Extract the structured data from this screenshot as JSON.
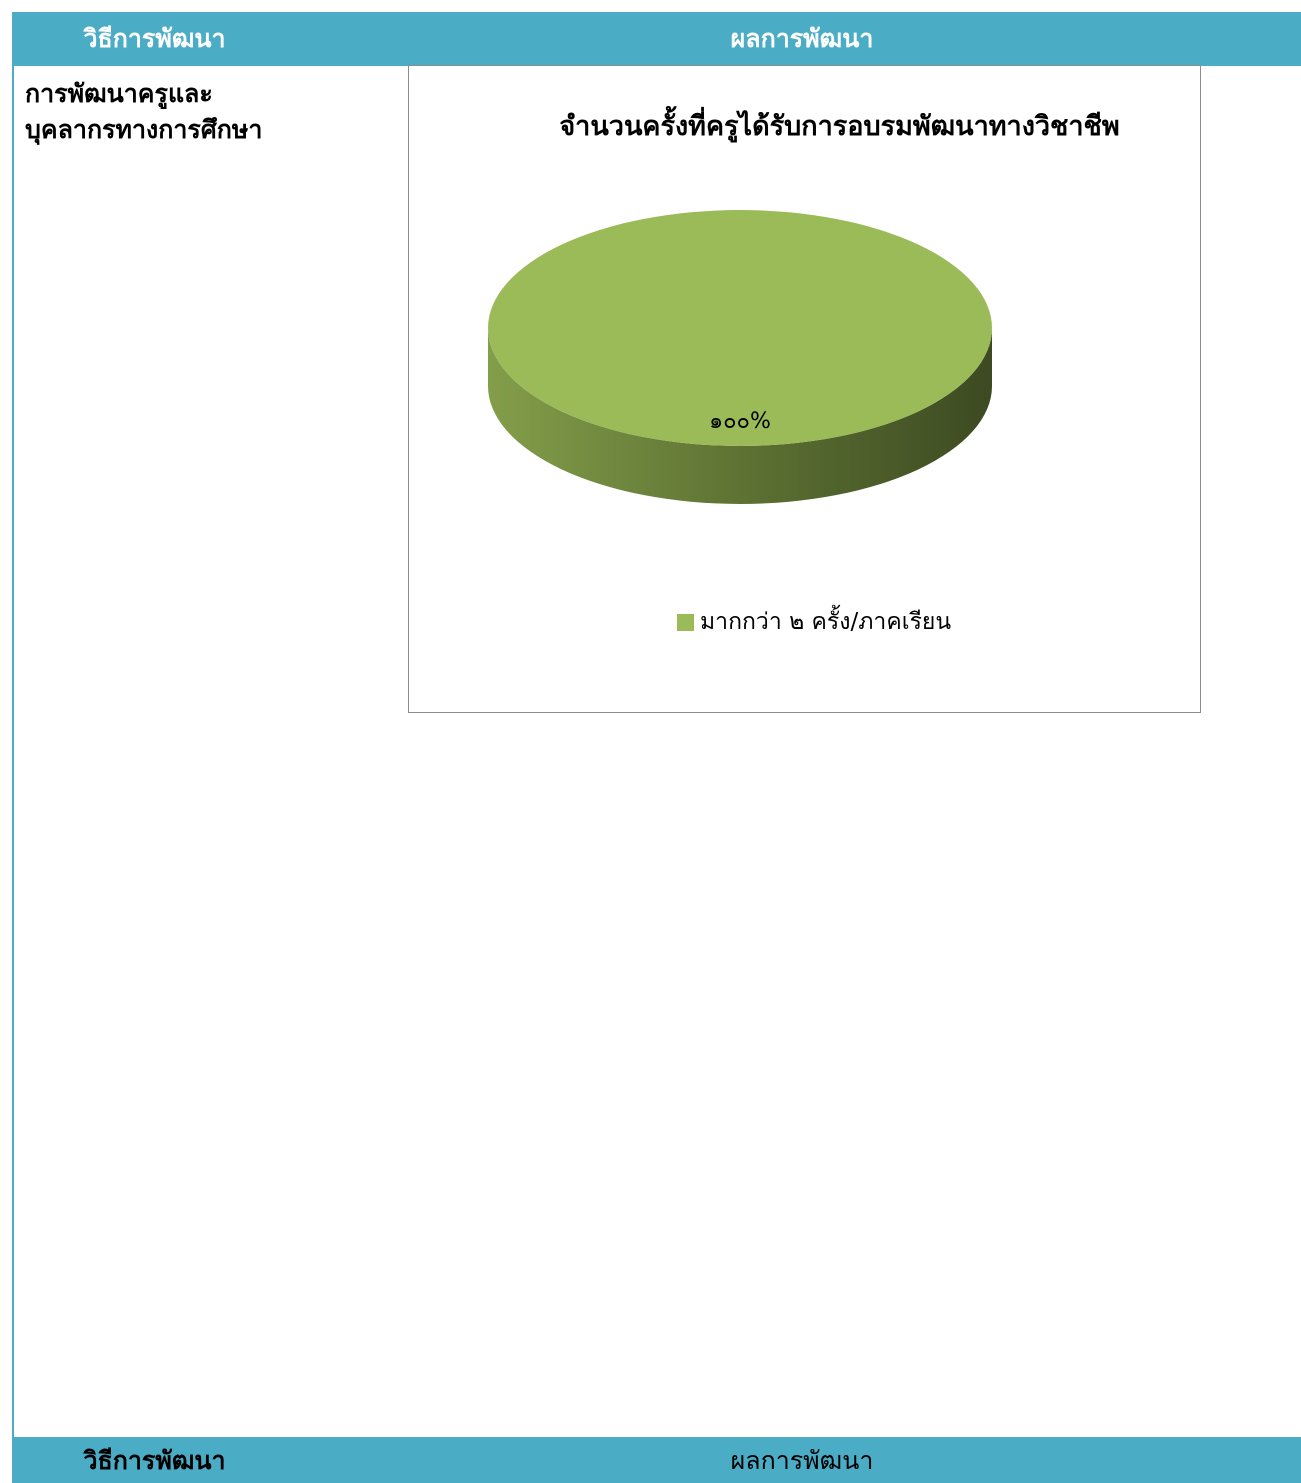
{
  "header": {
    "left_label": "วิธีการพัฒนา",
    "right_label": "ผลการพัฒนา"
  },
  "method": {
    "line1": "การพัฒนาครูและ",
    "line2": "บุคลากรทางการศึกษา"
  },
  "footer": {
    "left_label": "วิธีการพัฒนา",
    "right_label": "ผลการพัฒนา"
  },
  "colors": {
    "header_bg": "#4bacc6",
    "slice_top": "#9bbb59",
    "slice_side_dark": "#3d4a22",
    "slice_side_light": "#839e4a"
  },
  "chart_data": {
    "type": "pie",
    "title": "จำนวนครั้งที่ครูได้รับการอบรมพัฒนาทางวิชาชีพ",
    "style": "3d",
    "slices": [
      {
        "label": "มากกว่า ๒ ครั้ง/ภาคเรียน",
        "value": 100,
        "data_label": "๑๐๐%"
      }
    ],
    "legend_position": "bottom"
  }
}
